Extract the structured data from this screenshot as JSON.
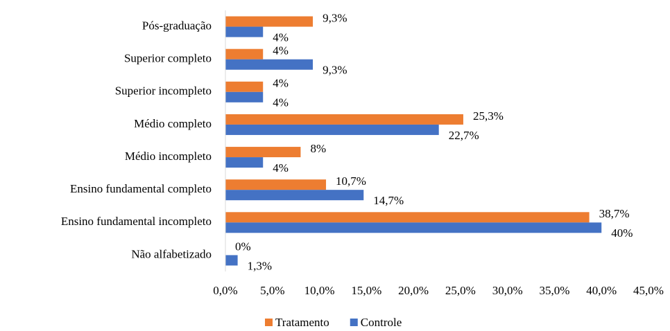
{
  "chart_data": {
    "type": "barh",
    "categories": [
      "Pós-graduação",
      "Superior completo",
      "Superior incompleto",
      "Médio completo",
      "Médio incompleto",
      "Ensino fundamental completo",
      "Ensino fundamental incompleto",
      "Não alfabetizado"
    ],
    "series": [
      {
        "name": "Tratamento",
        "color": "#ed7d31",
        "values": [
          9.3,
          4,
          4,
          25.3,
          8,
          10.7,
          38.7,
          0
        ],
        "value_labels": [
          "9,3%",
          "4%",
          "4%",
          "25,3%",
          "8%",
          "10,7%",
          "38,7%",
          "0%"
        ]
      },
      {
        "name": "Controle",
        "color": "#4472c4",
        "values": [
          4,
          9.3,
          4,
          22.7,
          4,
          14.7,
          40,
          1.3
        ],
        "value_labels": [
          "4%",
          "9,3%",
          "4%",
          "22,7%",
          "4%",
          "14,7%",
          "40%",
          "1,3%"
        ]
      }
    ],
    "xlim": [
      0,
      45
    ],
    "xticks": [
      {
        "value": 0,
        "label": "0,0%"
      },
      {
        "value": 5,
        "label": "5,0%"
      },
      {
        "value": 10,
        "label": "10,0%"
      },
      {
        "value": 15,
        "label": "15,0%"
      },
      {
        "value": 20,
        "label": "20,0%"
      },
      {
        "value": 25,
        "label": "25,0%"
      },
      {
        "value": 30,
        "label": "30,0%"
      },
      {
        "value": 35,
        "label": "35,0%"
      },
      {
        "value": 40,
        "label": "40,0%"
      },
      {
        "value": 45,
        "label": "45,0%"
      }
    ],
    "legend": "bottom"
  }
}
